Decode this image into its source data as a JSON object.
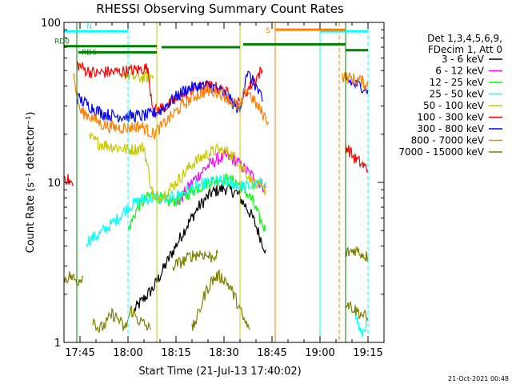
{
  "chart_data": {
    "type": "line",
    "title": "RHESSI Observing Summary Count Rates",
    "xlabel": "Start Time (21-Jul-13 17:40:02)",
    "ylabel": "Count Rate (s⁻¹ detector⁻¹)",
    "yscale": "log",
    "ylim": [
      1,
      100
    ],
    "xlim_minutes": [
      0,
      100
    ],
    "x_ticks": [
      {
        "value": 5,
        "label": "17:45"
      },
      {
        "value": 20,
        "label": "18:00"
      },
      {
        "value": 35,
        "label": "18:15"
      },
      {
        "value": 50,
        "label": "18:30"
      },
      {
        "value": 65,
        "label": "18:45"
      },
      {
        "value": 80,
        "label": "19:00"
      },
      {
        "value": 95,
        "label": "19:15"
      }
    ],
    "y_ticks": [
      {
        "value": 1,
        "label": "1"
      },
      {
        "value": 10,
        "label": "10"
      },
      {
        "value": 100,
        "label": "100"
      }
    ],
    "legend_placement": "top-right",
    "legend_header": [
      "Det 1,3,4,5,6,9,",
      "FDecim 1, Att 0"
    ],
    "series": [
      {
        "name": "3 - 6 keV",
        "color": "#000000",
        "segments": [
          [
            [
              22,
              1.6
            ],
            [
              28,
              2.2
            ],
            [
              33,
              3.4
            ],
            [
              38,
              5.2
            ],
            [
              42,
              7.0
            ],
            [
              46,
              8.6
            ],
            [
              50,
              9.2
            ],
            [
              54,
              8.6
            ],
            [
              57,
              7.0
            ],
            [
              59,
              6.0
            ],
            [
              62,
              4.2
            ],
            [
              63,
              3.8
            ]
          ]
        ]
      },
      {
        "name": "6 - 12 keV",
        "color": "#ff00ff",
        "segments": [
          [
            [
              35,
              7.2
            ],
            [
              40,
              10
            ],
            [
              44,
              12.2
            ],
            [
              48,
              14.0
            ],
            [
              51,
              14.5
            ],
            [
              54,
              13.5
            ],
            [
              57,
              11.8
            ],
            [
              60,
              10.5
            ],
            [
              62,
              9.6
            ],
            [
              63,
              9.2
            ]
          ]
        ]
      },
      {
        "name": "12 - 25 keV",
        "color": "#00ff00",
        "segments": [
          [
            [
              20,
              5.0
            ],
            [
              23,
              7.0
            ],
            [
              26,
              8.0
            ],
            [
              28,
              8.6
            ],
            [
              32,
              7.5
            ],
            [
              36,
              7.8
            ],
            [
              40,
              8.8
            ],
            [
              44,
              9.8
            ],
            [
              48,
              10.4
            ],
            [
              51,
              10.4
            ],
            [
              54,
              10.0
            ],
            [
              57,
              8.6
            ],
            [
              59,
              7.6
            ],
            [
              61,
              6.0
            ],
            [
              63,
              5.0
            ]
          ]
        ]
      },
      {
        "name": "25 - 50 keV",
        "color": "#00ffff",
        "segments": [
          [
            [
              7,
              4.3
            ],
            [
              10,
              4.6
            ],
            [
              14,
              5.3
            ],
            [
              17,
              6.0
            ],
            [
              20,
              7.0
            ],
            [
              24,
              7.8
            ],
            [
              28,
              8.0
            ],
            [
              32,
              7.8
            ],
            [
              36,
              8.4
            ],
            [
              40,
              9.2
            ],
            [
              44,
              9.8
            ],
            [
              48,
              10.2
            ],
            [
              51,
              10.0
            ],
            [
              54,
              9.6
            ],
            [
              57,
              9.4
            ],
            [
              60,
              9.6
            ],
            [
              63,
              10.0
            ]
          ],
          [
            [
              91,
              1.5
            ],
            [
              93,
              1.1
            ],
            [
              95,
              1.4
            ]
          ]
        ]
      },
      {
        "name": "50 - 100 keV",
        "color": "#c8c800",
        "segments": [
          [
            [
              8,
              19
            ],
            [
              11,
              17.5
            ],
            [
              14,
              17
            ],
            [
              17,
              16.5
            ],
            [
              20,
              16
            ],
            [
              23,
              16.2
            ],
            [
              25,
              16.6
            ],
            [
              28,
              7.8
            ],
            [
              32,
              8.6
            ],
            [
              36,
              10.5
            ],
            [
              40,
              13
            ],
            [
              44,
              14.8
            ],
            [
              48,
              16
            ],
            [
              51,
              15.5
            ],
            [
              54,
              14
            ],
            [
              57,
              11.5
            ],
            [
              59,
              10
            ],
            [
              62,
              9
            ],
            [
              63,
              9
            ]
          ],
          [
            [
              18.5,
              48
            ],
            [
              21,
              46
            ],
            [
              25,
              45
            ],
            [
              28,
              46
            ]
          ]
        ]
      },
      {
        "name": "100 - 300 keV",
        "color": "#ff0000",
        "segments": [
          [
            [
              0,
              11
            ],
            [
              3,
              9.5
            ]
          ],
          [
            [
              4,
              55
            ],
            [
              7,
              50
            ],
            [
              10,
              48
            ],
            [
              13,
              49
            ],
            [
              17,
              49
            ],
            [
              21,
              50
            ],
            [
              24,
              51
            ],
            [
              26,
              52
            ],
            [
              28,
              28
            ],
            [
              32,
              30
            ],
            [
              36,
              34
            ],
            [
              40,
              38
            ],
            [
              44,
              40
            ],
            [
              48,
              39
            ],
            [
              51,
              36
            ],
            [
              53,
              32
            ],
            [
              55,
              31
            ],
            [
              57,
              37
            ],
            [
              59,
              42
            ],
            [
              61,
              48
            ],
            [
              62,
              50
            ]
          ],
          [
            [
              88,
              17
            ],
            [
              91,
              14
            ],
            [
              93,
              13
            ],
            [
              95,
              12
            ]
          ]
        ]
      },
      {
        "name": "300 - 800 keV",
        "color": "#0000ff",
        "segments": [
          [
            [
              4,
              34
            ],
            [
              8,
              30
            ],
            [
              12,
              27
            ],
            [
              16,
              26
            ],
            [
              20,
              26
            ],
            [
              24,
              26
            ],
            [
              27,
              26.5
            ],
            [
              30,
              28
            ],
            [
              34,
              33
            ],
            [
              38,
              38
            ],
            [
              42,
              40
            ],
            [
              46,
              40
            ],
            [
              50,
              36
            ],
            [
              53,
              31
            ],
            [
              55,
              28
            ],
            [
              57,
              49
            ],
            [
              60,
              40
            ],
            [
              62,
              32
            ]
          ],
          [
            [
              88,
              44
            ],
            [
              91,
              41
            ],
            [
              93,
              40
            ],
            [
              95,
              38
            ]
          ]
        ]
      },
      {
        "name": "800 - 7000 keV",
        "color": "#ff8000",
        "segments": [
          [
            [
              3,
              46
            ],
            [
              5,
              28
            ],
            [
              8,
              26
            ],
            [
              12,
              23
            ],
            [
              16,
              22
            ],
            [
              20,
              22
            ],
            [
              24,
              22.5
            ],
            [
              28,
              20
            ],
            [
              32,
              24
            ],
            [
              36,
              29
            ],
            [
              40,
              34
            ],
            [
              44,
              37
            ],
            [
              48,
              37
            ],
            [
              51,
              34
            ],
            [
              54,
              30
            ],
            [
              55,
              29
            ],
            [
              57,
              39
            ],
            [
              59,
              33
            ],
            [
              62,
              27
            ],
            [
              64,
              24
            ]
          ],
          [
            [
              87,
              46
            ],
            [
              91,
              44
            ],
            [
              93,
              43
            ],
            [
              95,
              40
            ]
          ]
        ]
      },
      {
        "name": "7000 - 15000 keV",
        "color": "#808000",
        "segments": [
          [
            [
              0,
              2.5
            ],
            [
              2,
              2.6
            ],
            [
              4,
              2.4
            ],
            [
              6,
              2.6
            ]
          ],
          [
            [
              9,
              1.4
            ],
            [
              11,
              1.2
            ],
            [
              13,
              1.3
            ],
            [
              15,
              1.5
            ],
            [
              17,
              1.4
            ],
            [
              19,
              1.2
            ],
            [
              21,
              1.6
            ],
            [
              23,
              1.4
            ],
            [
              25,
              1.3
            ],
            [
              27,
              1.2
            ]
          ],
          [
            [
              34,
              3.0
            ],
            [
              37,
              3.2
            ],
            [
              40,
              3.5
            ],
            [
              43,
              3.6
            ],
            [
              46,
              3.4
            ],
            [
              48,
              3.6
            ]
          ],
          [
            [
              40,
              1.2
            ],
            [
              42,
              1.5
            ],
            [
              44,
              2.0
            ],
            [
              46,
              2.4
            ],
            [
              48,
              2.6
            ],
            [
              50,
              2.5
            ],
            [
              52,
              2.2
            ],
            [
              54,
              1.8
            ],
            [
              56,
              1.4
            ],
            [
              58,
              1.2
            ]
          ],
          [
            [
              88,
              3.6
            ],
            [
              91,
              3.8
            ],
            [
              93,
              3.6
            ],
            [
              95,
              3.4
            ]
          ],
          [
            [
              88,
              1.8
            ],
            [
              91,
              1.6
            ],
            [
              93,
              1.5
            ],
            [
              95,
              1.4
            ]
          ]
        ]
      }
    ],
    "flags": [
      {
        "label": "N",
        "color": "#00ffff",
        "start": 0,
        "end": 20,
        "level": 88
      },
      {
        "label": "",
        "color": "#00ffff",
        "start": 80,
        "end": 95,
        "level": 88
      },
      {
        "label": "S",
        "color": "#ff8000",
        "start": 66,
        "end": 88,
        "level": 90
      },
      {
        "label": "RD0",
        "color": "#008000",
        "start": 0,
        "end": 29,
        "level": 71
      },
      {
        "label": "",
        "color": "#008000",
        "start": 30.5,
        "end": 55,
        "level": 70
      },
      {
        "label": "",
        "color": "#008000",
        "start": 56,
        "end": 88,
        "level": 73
      },
      {
        "label": "",
        "color": "#008000",
        "start": 88,
        "end": 95,
        "level": 67
      },
      {
        "label": "RD6",
        "color": "#008000",
        "start": 4.5,
        "end": 29,
        "level": 65
      }
    ],
    "vlines": [
      {
        "x": 0,
        "color": "#00ffff",
        "style": "solid"
      },
      {
        "x": 4,
        "color": "#008000",
        "style": "solid"
      },
      {
        "x": 20,
        "color": "#00ffff",
        "style": "dashed"
      },
      {
        "x": 29,
        "color": "#c8c800",
        "style": "solid"
      },
      {
        "x": 55,
        "color": "#c8c800",
        "style": "solid"
      },
      {
        "x": 66,
        "color": "#ff8000",
        "style": "solid"
      },
      {
        "x": 80,
        "color": "#00ffff",
        "style": "solid"
      },
      {
        "x": 86,
        "color": "#ff8000",
        "style": "dashed"
      },
      {
        "x": 88,
        "color": "#008000",
        "style": "solid"
      },
      {
        "x": 95,
        "color": "#00ffff",
        "style": "dashed"
      }
    ],
    "footer_date": "21-Oct-2021 00:48"
  }
}
